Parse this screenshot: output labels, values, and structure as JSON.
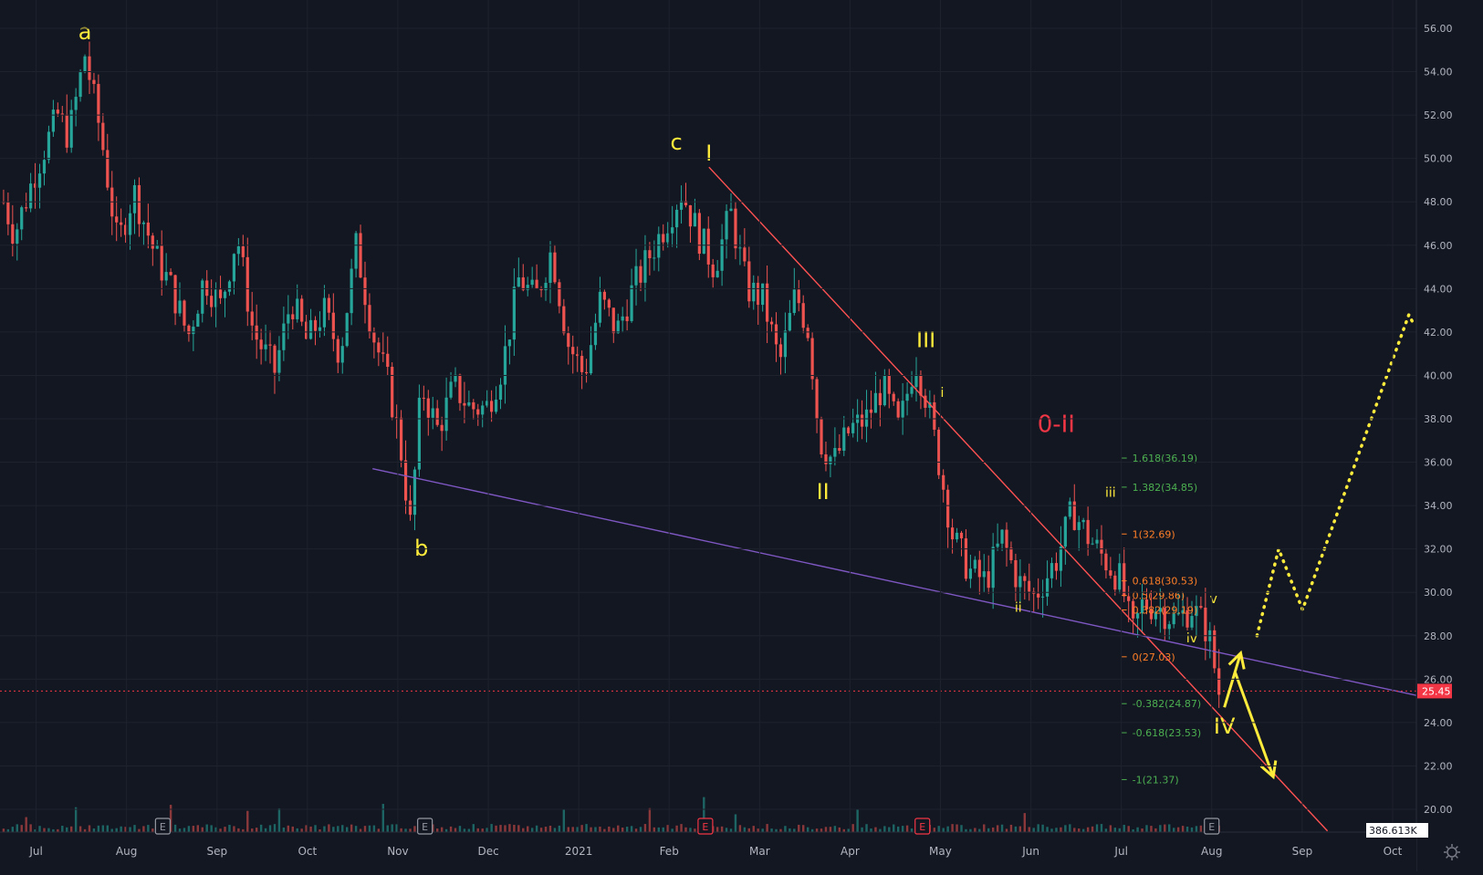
{
  "chart_data": {
    "type": "candlestick",
    "x_axis": {
      "ticks": [
        "Jul",
        "Aug",
        "Sep",
        "Oct",
        "Nov",
        "Dec",
        "2021",
        "Feb",
        "Mar",
        "Apr",
        "May",
        "Jun",
        "Jul",
        "Aug",
        "Sep",
        "Oct"
      ],
      "tick_months": [
        2020.5,
        2020.5833,
        2020.6667,
        2020.75,
        2020.8333,
        2020.9167,
        2021.0,
        2021.0833,
        2021.1667,
        2021.25,
        2021.3333,
        2021.4167,
        2021.5,
        2021.5833,
        2021.6667,
        2021.75
      ]
    },
    "y_axis": {
      "ticks": [
        "56.00",
        "54.00",
        "52.00",
        "50.00",
        "48.00",
        "46.00",
        "44.00",
        "42.00",
        "40.00",
        "38.00",
        "36.00",
        "34.00",
        "32.00",
        "30.00",
        "28.00",
        "26.00",
        "24.00",
        "22.00",
        "20.00"
      ],
      "range": [
        19.0,
        57.0
      ]
    },
    "price_path": [
      [
        2020.47,
        48.0
      ],
      [
        2020.48,
        46.5
      ],
      [
        2020.5,
        49.5
      ],
      [
        2020.52,
        52.0
      ],
      [
        2020.53,
        51.0
      ],
      [
        2020.545,
        54.8
      ],
      [
        2020.56,
        51.0
      ],
      [
        2020.575,
        46.0
      ],
      [
        2020.59,
        48.5
      ],
      [
        2020.61,
        45.5
      ],
      [
        2020.625,
        44.0
      ],
      [
        2020.64,
        41.8
      ],
      [
        2020.655,
        44.5
      ],
      [
        2020.67,
        43.2
      ],
      [
        2020.685,
        46.5
      ],
      [
        2020.7,
        42.0
      ],
      [
        2020.72,
        40.2
      ],
      [
        2020.735,
        43.5
      ],
      [
        2020.75,
        41.5
      ],
      [
        2020.765,
        43.0
      ],
      [
        2020.78,
        41.0
      ],
      [
        2020.795,
        46.0
      ],
      [
        2020.81,
        42.0
      ],
      [
        2020.825,
        39.5
      ],
      [
        2020.835,
        37.0
      ],
      [
        2020.845,
        33.0
      ],
      [
        2020.855,
        39.5
      ],
      [
        2020.87,
        37.5
      ],
      [
        2020.885,
        39.5
      ],
      [
        2020.9,
        38.5
      ],
      [
        2020.915,
        38.5
      ],
      [
        2020.93,
        40.5
      ],
      [
        2020.945,
        44.5
      ],
      [
        2020.96,
        43.5
      ],
      [
        2020.975,
        45.8
      ],
      [
        2020.99,
        41.5
      ],
      [
        2021.005,
        40.0
      ],
      [
        2021.02,
        43.5
      ],
      [
        2021.035,
        42.0
      ],
      [
        2021.05,
        44.0
      ],
      [
        2021.065,
        45.5
      ],
      [
        2021.08,
        47.0
      ],
      [
        2021.095,
        48.5
      ],
      [
        2021.11,
        46.5
      ],
      [
        2021.125,
        45.0
      ],
      [
        2021.14,
        47.5
      ],
      [
        2021.155,
        44.0
      ],
      [
        2021.17,
        43.5
      ],
      [
        2021.185,
        40.5
      ],
      [
        2021.2,
        43.8
      ],
      [
        2021.212,
        42.0
      ],
      [
        2021.222,
        37.0
      ],
      [
        2021.235,
        36.0
      ],
      [
        2021.25,
        37.5
      ],
      [
        2021.265,
        38.0
      ],
      [
        2021.28,
        39.5
      ],
      [
        2021.295,
        37.5
      ],
      [
        2021.31,
        40.8
      ],
      [
        2021.32,
        39.0
      ],
      [
        2021.33,
        36.5
      ],
      [
        2021.345,
        32.5
      ],
      [
        2021.36,
        31.0
      ],
      [
        2021.375,
        30.5
      ],
      [
        2021.39,
        32.5
      ],
      [
        2021.405,
        30.5
      ],
      [
        2021.42,
        29.8
      ],
      [
        2021.44,
        31.5
      ],
      [
        2021.455,
        33.8
      ],
      [
        2021.47,
        32.5
      ],
      [
        2021.485,
        31.5
      ],
      [
        2021.5,
        30.5
      ],
      [
        2021.51,
        28.0
      ],
      [
        2021.52,
        29.5
      ],
      [
        2021.535,
        29.3
      ],
      [
        2021.55,
        28.7
      ],
      [
        2021.565,
        29.3
      ],
      [
        2021.58,
        28.2
      ],
      [
        2021.59,
        25.4
      ]
    ],
    "price_label": "25.45",
    "volume_label": "386.613K",
    "earnings_markers": [
      {
        "x": 2020.6167,
        "label": "E",
        "color": "#9598a1"
      },
      {
        "x": 2020.8583,
        "label": "E",
        "color": "#9598a1"
      },
      {
        "x": 2021.1167,
        "label": "E",
        "color": "#f23645"
      },
      {
        "x": 2021.3167,
        "label": "E",
        "color": "#f23645"
      },
      {
        "x": 2021.5833,
        "label": "E",
        "color": "#9598a1"
      }
    ],
    "trend_lines": [
      {
        "name": "resistance",
        "color": "#ff5252",
        "from": [
          2021.12,
          49.6
        ],
        "to": [
          2021.69,
          19.0
        ]
      },
      {
        "name": "support",
        "color": "#7e57c2",
        "from": [
          2020.81,
          35.7
        ],
        "to": [
          2021.795,
          25.0
        ]
      }
    ],
    "fibonacci": [
      {
        "label": "1.618(36.19)",
        "price": 36.19,
        "color": "#4caf50"
      },
      {
        "label": "1.382(34.85)",
        "price": 34.85,
        "color": "#4caf50"
      },
      {
        "label": "1(32.69)",
        "price": 32.69,
        "color": "#ff7f27"
      },
      {
        "label": "0.618(30.53)",
        "price": 30.53,
        "color": "#ff7f27"
      },
      {
        "label": "0.5(29.86)",
        "price": 29.86,
        "color": "#ff7f27"
      },
      {
        "label": "0.382(29.19)",
        "price": 29.19,
        "color": "#ff7f27"
      },
      {
        "label": "0(27.03)",
        "price": 27.03,
        "color": "#ff7f27"
      },
      {
        "label": "-0.382(24.87)",
        "price": 24.87,
        "color": "#4caf50"
      },
      {
        "label": "-0.618(23.53)",
        "price": 23.53,
        "color": "#4caf50"
      },
      {
        "label": "-1(21.37)",
        "price": 21.37,
        "color": "#4caf50"
      }
    ],
    "annotations": [
      {
        "text": "a",
        "x": 2020.545,
        "y": 55.5,
        "color": "#ffeb3b"
      },
      {
        "text": "b",
        "x": 2020.855,
        "y": 31.7,
        "color": "#ffeb3b"
      },
      {
        "text": "c",
        "x": 2021.09,
        "y": 50.4,
        "color": "#ffeb3b"
      },
      {
        "text": "I",
        "x": 2021.12,
        "y": 49.9,
        "color": "#ffeb3b"
      },
      {
        "text": "II",
        "x": 2021.225,
        "y": 34.3,
        "color": "#ffeb3b"
      },
      {
        "text": "III",
        "x": 2021.32,
        "y": 41.3,
        "color": "#ffeb3b"
      },
      {
        "text": "IV",
        "x": 2021.595,
        "y": 23.5,
        "color": "#ffeb3b"
      },
      {
        "text": "0-II",
        "x": 2021.44,
        "y": 37.4,
        "color": "#f23645"
      },
      {
        "text": "i",
        "x": 2021.335,
        "y": 39.0,
        "color": "#ffeb3b"
      },
      {
        "text": "ii",
        "x": 2021.405,
        "y": 29.1,
        "color": "#ffeb3b"
      },
      {
        "text": "iii",
        "x": 2021.49,
        "y": 34.4,
        "color": "#ffeb3b"
      },
      {
        "text": "iv",
        "x": 2021.565,
        "y": 27.7,
        "color": "#ffeb3b"
      },
      {
        "text": "v",
        "x": 2021.585,
        "y": 29.5,
        "color": "#ffeb3b"
      }
    ],
    "arrows": [
      {
        "name": "up-arrow",
        "color": "#ffeb3b",
        "from": [
          2021.595,
          24.7
        ],
        "to": [
          2021.61,
          27.2
        ]
      },
      {
        "name": "down-arrow",
        "color": "#ffeb3b",
        "from": [
          2021.605,
          26.3
        ],
        "to": [
          2021.64,
          21.5
        ]
      }
    ],
    "projection_path": {
      "color": "#ffeb3b",
      "points": [
        [
          2021.625,
          28.0
        ],
        [
          2021.645,
          32.0
        ],
        [
          2021.667,
          29.2
        ],
        [
          2021.765,
          42.8
        ],
        [
          2021.77,
          42.3
        ]
      ]
    }
  }
}
